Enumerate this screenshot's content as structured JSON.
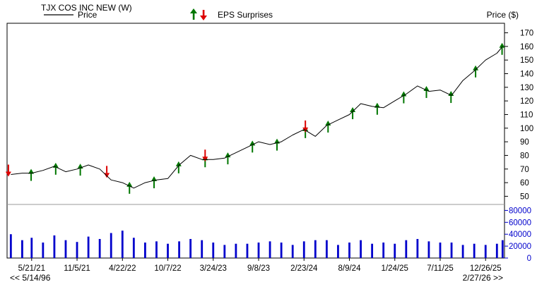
{
  "chart_data": {
    "type": "line",
    "title": "TJX COS INC NEW (W)",
    "legend": {
      "price_label": "Price",
      "eps_label": "EPS Surprises",
      "placement": "top-left"
    },
    "ylabel": "Price ($)",
    "ylim": [
      44,
      177
    ],
    "yticks": [
      50,
      60,
      70,
      80,
      90,
      100,
      110,
      120,
      130,
      140,
      150,
      160,
      170
    ],
    "volume_ylim": [
      0,
      90000
    ],
    "volume_ticks": [
      "0",
      "20000",
      "40000",
      "60000",
      "80000"
    ],
    "x_tick_labels": [
      "5/21/21",
      "11/5/21",
      "4/22/22",
      "10/7/22",
      "3/24/23",
      "9/8/23",
      "2/23/24",
      "8/9/24",
      "1/24/25",
      "7/11/25",
      "12/26/25"
    ],
    "nav": {
      "left": "<< 5/14/96",
      "right": "2/27/26 >>"
    },
    "colors": {
      "price": "#000000",
      "volume": "#0000cc",
      "eps_positive": "#007700",
      "eps_negative": "#dd0000",
      "grid": "#999999"
    },
    "price_series": {
      "name": "Price",
      "x": [
        "2021-03-05",
        "2021-04-16",
        "2021-05-21",
        "2021-07-02",
        "2021-08-13",
        "2021-09-24",
        "2021-11-05",
        "2021-12-17",
        "2022-01-28",
        "2022-03-11",
        "2022-04-22",
        "2022-06-03",
        "2022-07-15",
        "2022-08-26",
        "2022-10-07",
        "2022-11-18",
        "2022-12-30",
        "2023-02-10",
        "2023-03-24",
        "2023-05-05",
        "2023-06-16",
        "2023-07-28",
        "2023-09-08",
        "2023-10-20",
        "2023-12-01",
        "2024-01-12",
        "2024-02-23",
        "2024-04-05",
        "2024-05-17",
        "2024-06-28",
        "2024-08-09",
        "2024-09-20",
        "2024-11-01",
        "2024-12-13",
        "2025-01-24",
        "2025-03-07",
        "2025-04-18",
        "2025-05-30",
        "2025-07-11",
        "2025-08-22",
        "2025-10-03",
        "2025-11-14",
        "2025-12-26",
        "2026-02-06",
        "2026-02-27"
      ],
      "values": [
        66,
        67,
        67,
        69,
        72,
        68,
        70,
        73,
        70,
        62,
        60,
        56,
        60,
        62,
        63,
        73,
        80,
        77,
        77,
        78,
        82,
        86,
        90,
        88,
        90,
        95,
        99,
        94,
        102,
        106,
        110,
        118,
        116,
        115,
        120,
        125,
        131,
        127,
        128,
        124,
        135,
        142,
        150,
        155,
        160
      ]
    },
    "eps_surprises": [
      {
        "date": "2021-02-24",
        "direction": "down"
      },
      {
        "date": "2021-05-19",
        "direction": "up"
      },
      {
        "date": "2021-08-18",
        "direction": "up"
      },
      {
        "date": "2021-11-17",
        "direction": "up"
      },
      {
        "date": "2022-02-23",
        "direction": "down"
      },
      {
        "date": "2022-05-18",
        "direction": "up"
      },
      {
        "date": "2022-08-17",
        "direction": "up"
      },
      {
        "date": "2022-11-16",
        "direction": "up"
      },
      {
        "date": "2023-02-22",
        "direction": "mixed"
      },
      {
        "date": "2023-05-17",
        "direction": "up"
      },
      {
        "date": "2023-08-16",
        "direction": "up"
      },
      {
        "date": "2023-11-15",
        "direction": "up"
      },
      {
        "date": "2024-02-28",
        "direction": "mixed"
      },
      {
        "date": "2024-05-22",
        "direction": "up"
      },
      {
        "date": "2024-08-21",
        "direction": "up"
      },
      {
        "date": "2024-11-20",
        "direction": "up"
      },
      {
        "date": "2025-02-26",
        "direction": "up"
      },
      {
        "date": "2025-05-21",
        "direction": "up"
      },
      {
        "date": "2025-08-20",
        "direction": "up"
      },
      {
        "date": "2025-11-19",
        "direction": "up"
      },
      {
        "date": "2026-02-25",
        "direction": "up"
      }
    ],
    "volume_series": {
      "name": "Volume",
      "x": [
        "2021-03-05",
        "2021-04-16",
        "2021-05-21",
        "2021-07-02",
        "2021-08-13",
        "2021-09-24",
        "2021-11-05",
        "2021-12-17",
        "2022-01-28",
        "2022-03-11",
        "2022-04-22",
        "2022-06-03",
        "2022-07-15",
        "2022-08-26",
        "2022-10-07",
        "2022-11-18",
        "2022-12-30",
        "2023-02-10",
        "2023-03-24",
        "2023-05-05",
        "2023-06-16",
        "2023-07-28",
        "2023-09-08",
        "2023-10-20",
        "2023-12-01",
        "2024-01-12",
        "2024-02-23",
        "2024-04-05",
        "2024-05-17",
        "2024-06-28",
        "2024-08-09",
        "2024-09-20",
        "2024-11-01",
        "2024-12-13",
        "2025-01-24",
        "2025-03-07",
        "2025-04-18",
        "2025-05-30",
        "2025-07-11",
        "2025-08-22",
        "2025-10-03",
        "2025-11-14",
        "2025-12-26",
        "2026-02-06",
        "2026-02-27"
      ],
      "values": [
        40000,
        30000,
        34000,
        26000,
        38000,
        30000,
        27000,
        36000,
        32000,
        42000,
        46000,
        34000,
        26000,
        28000,
        24000,
        28000,
        32000,
        30000,
        26000,
        22000,
        24000,
        24000,
        26000,
        28000,
        26000,
        22000,
        28000,
        30000,
        30000,
        22000,
        26000,
        30000,
        24000,
        26000,
        24000,
        30000,
        32000,
        28000,
        26000,
        26000,
        22000,
        24000,
        22000,
        24000,
        30000
      ]
    }
  }
}
